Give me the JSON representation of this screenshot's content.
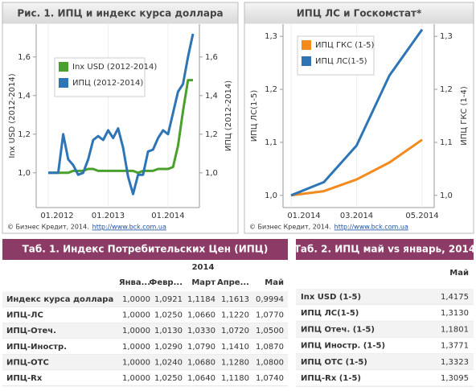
{
  "chart_data": [
    {
      "type": "line",
      "title": "Рис. 1. ИПЦ и индекс курса доллара",
      "y_label": "Inx USD (2012-2014)",
      "y2_label": "ИПЦ (2012-2014)",
      "categories": [
        "01.2012",
        null,
        null,
        null,
        null,
        null,
        null,
        null,
        null,
        null,
        null,
        null,
        "01.2013",
        null,
        null,
        null,
        null,
        null,
        null,
        null,
        null,
        null,
        null,
        null,
        "01.2014",
        null,
        null,
        null,
        null,
        null
      ],
      "series": [
        {
          "name": "Inx USD (2012-2014)",
          "color": "#4aa02c",
          "values": [
            1.0,
            1.0,
            1.0,
            1.0,
            1.0,
            1.01,
            1.01,
            1.01,
            1.02,
            1.02,
            1.01,
            1.01,
            1.01,
            1.01,
            1.01,
            1.01,
            1.01,
            1.01,
            1.0,
            1.01,
            1.01,
            1.01,
            1.02,
            1.02,
            1.02,
            1.03,
            1.14,
            1.32,
            1.48,
            1.48
          ]
        },
        {
          "name": "ИПЦ (2012-2014)",
          "color": "#2e75b6",
          "axis": "y2",
          "values": [
            1.0,
            1.0,
            1.0,
            1.2,
            1.07,
            1.04,
            0.99,
            1.0,
            1.07,
            1.17,
            1.19,
            1.17,
            1.22,
            1.18,
            1.23,
            1.13,
            0.98,
            0.89,
            0.99,
            0.99,
            1.11,
            1.12,
            1.18,
            1.22,
            1.2,
            1.31,
            1.42,
            1.46,
            1.6,
            1.72
          ]
        }
      ],
      "ylim": [
        0.82,
        1.77
      ],
      "yticks": [
        {
          "value": 1.0,
          "label": "1,0"
        },
        {
          "value": 1.2,
          "label": "1,2"
        },
        {
          "value": 1.4,
          "label": "1,4"
        },
        {
          "value": 1.6,
          "label": "1,6"
        }
      ],
      "y2lim": [
        0.82,
        1.77
      ],
      "y2ticks": [
        {
          "value": 1.0,
          "label": "1,0"
        },
        {
          "value": 1.2,
          "label": "1,2"
        },
        {
          "value": 1.4,
          "label": "1,4"
        },
        {
          "value": 1.6,
          "label": "1,6"
        }
      ],
      "legend": "upper left",
      "source": "© Бизнес Кредит, 2014.",
      "url": "http://www.bck.com.ua"
    },
    {
      "type": "line",
      "title": "ИПЦ ЛС и Госкомстат*",
      "y_label": "ИПЦ ЛС(1-5)",
      "y2_label": "ИПЦ ГКС (1-4)",
      "categories": [
        "01.2014",
        null,
        "03.2014",
        null,
        "05.2014"
      ],
      "series": [
        {
          "name": "ИПЦ ГКС (1-5)",
          "color": "#f28a1e",
          "axis": "y2",
          "values": [
            1.0,
            1.008,
            1.03,
            1.062,
            1.105
          ]
        },
        {
          "name": "ИПЦ ЛС(1-5)",
          "color": "#2e75b6",
          "values": [
            1.0,
            1.025,
            1.094,
            1.226,
            1.313
          ]
        }
      ],
      "ylim": [
        0.977,
        1.323
      ],
      "yticks": [
        {
          "value": 1.0,
          "label": "1,0"
        },
        {
          "value": 1.1,
          "label": "1,1"
        },
        {
          "value": 1.2,
          "label": "1,2"
        },
        {
          "value": 1.3,
          "label": "1,3"
        }
      ],
      "y2lim": [
        0.977,
        1.323
      ],
      "y2ticks": [
        {
          "value": 1.0,
          "label": "1,0"
        },
        {
          "value": 1.1,
          "label": "1,1"
        },
        {
          "value": 1.2,
          "label": "1,2"
        },
        {
          "value": 1.3,
          "label": "1,3"
        }
      ],
      "legend": "upper left",
      "source": "© Бизнес Кредит, 2014.",
      "url": "http://www.bck.com.ua"
    }
  ],
  "tables": [
    {
      "title": "Таб. 1. Индекс Потребительских Цен (ИПЦ)",
      "group": "2014",
      "columns": [
        "Янва...",
        "Февр...",
        "Март",
        "Апре...",
        "Май"
      ],
      "rows": [
        {
          "label": "Индекс курса доллара",
          "values": [
            "1,0000",
            "1,0921",
            "1,1184",
            "1,1613",
            "0,9994"
          ]
        },
        {
          "label": "ИПЦ-ЛС",
          "values": [
            "1,0000",
            "1,0250",
            "1,0660",
            "1,1220",
            "1,0770"
          ]
        },
        {
          "label": "ИПЦ-Отеч.",
          "values": [
            "1,0000",
            "1,0130",
            "1,0330",
            "1,0720",
            "1,0500"
          ]
        },
        {
          "label": "ИПЦ-Иностр.",
          "values": [
            "1,0000",
            "1,0290",
            "1,0790",
            "1,1410",
            "1,0870"
          ]
        },
        {
          "label": "ИПЦ-ОТС",
          "values": [
            "1,0000",
            "1,0240",
            "1,0680",
            "1,1280",
            "1,0800"
          ]
        },
        {
          "label": "ИПЦ-Rx",
          "values": [
            "1,0000",
            "1,0250",
            "1,0640",
            "1,1180",
            "1,0740"
          ]
        }
      ]
    },
    {
      "title": "Таб. 2. ИПЦ май vs январь, 2014",
      "columns": [
        "Май"
      ],
      "rows": [
        {
          "label": "Inx USD (1-5)",
          "values": [
            "1,4175"
          ]
        },
        {
          "label": "ИПЦ ЛС(1-5)",
          "values": [
            "1,3130"
          ]
        },
        {
          "label": "ИПЦ Отеч. (1-5)",
          "values": [
            "1,1801"
          ]
        },
        {
          "label": "ИПЦ Иностр. (1-5)",
          "values": [
            "1,3771"
          ]
        },
        {
          "label": "ИПЦ ОТС (1-5)",
          "values": [
            "1,3323"
          ]
        },
        {
          "label": "ИПЦ-Rx (1-5)",
          "values": [
            "1,3095"
          ]
        }
      ]
    }
  ]
}
